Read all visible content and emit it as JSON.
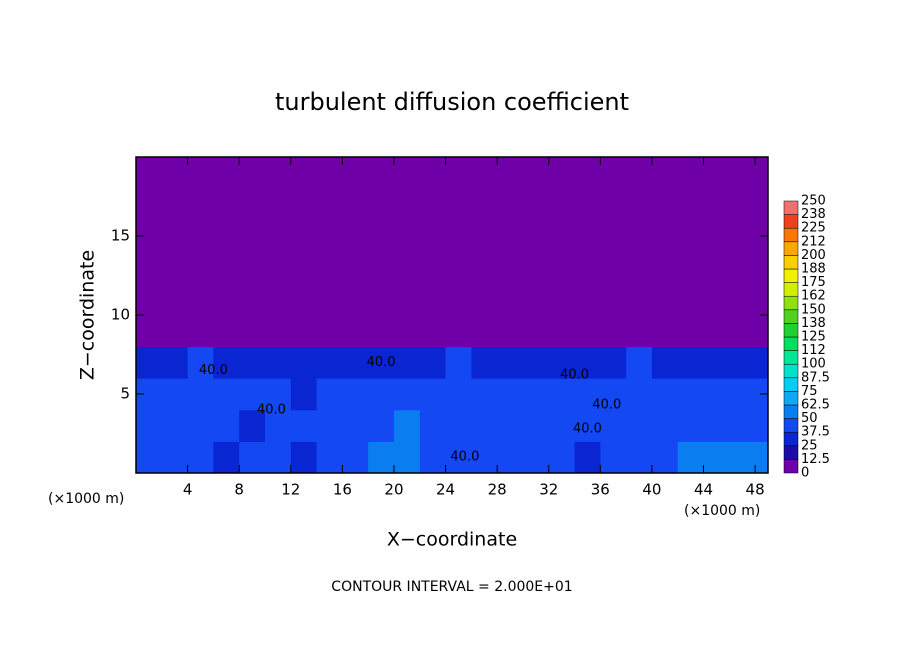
{
  "chart_data": {
    "type": "heatmap",
    "title": "turbulent diffusion coefficient",
    "x_label": "X−coordinate",
    "y_label": "Z−coordinate",
    "x_unit": "(×1000 m)",
    "y_unit": "(×1000 m)",
    "footer": "CONTOUR INTERVAL = 2.000E+01",
    "xlim": [
      0,
      49
    ],
    "ylim": [
      0,
      20
    ],
    "xticks": [
      4,
      8,
      12,
      16,
      20,
      24,
      28,
      32,
      36,
      40,
      44,
      48
    ],
    "yticks": [
      5,
      10,
      15
    ],
    "x": [
      1,
      3,
      5,
      7,
      9,
      11,
      13,
      15,
      17,
      19,
      21,
      23,
      25,
      27,
      29,
      31,
      33,
      35,
      37,
      39,
      41,
      43,
      45,
      47,
      49
    ],
    "y": [
      1,
      3,
      5,
      7,
      9,
      11,
      13,
      15,
      17,
      19
    ],
    "z": [
      [
        40,
        38,
        42,
        36,
        40,
        38,
        35,
        38,
        40,
        55,
        60,
        38,
        40,
        42,
        48,
        40,
        38,
        36,
        40,
        42,
        44,
        55,
        58,
        56,
        52
      ],
      [
        42,
        40,
        45,
        38,
        36,
        40,
        38,
        42,
        40,
        48,
        50,
        45,
        38,
        40,
        44,
        42,
        40,
        38,
        42,
        44,
        40,
        42,
        45,
        48,
        44
      ],
      [
        44,
        42,
        40,
        45,
        38,
        40,
        36,
        38,
        40,
        42,
        45,
        40,
        42,
        38,
        44,
        45,
        48,
        42,
        40,
        42,
        38,
        40,
        42,
        44,
        46
      ],
      [
        36,
        34,
        38,
        35,
        30,
        32,
        28,
        30,
        26,
        32,
        35,
        34,
        38,
        36,
        32,
        30,
        28,
        34,
        36,
        38,
        34,
        36,
        32,
        30,
        36
      ],
      [
        0,
        0,
        0,
        0,
        0,
        0,
        0,
        0,
        0,
        0,
        0,
        0,
        0,
        0,
        0,
        0,
        0,
        0,
        0,
        0,
        0,
        0,
        0,
        0,
        0
      ],
      [
        0,
        0,
        0,
        0,
        0,
        0,
        0,
        0,
        0,
        0,
        0,
        0,
        0,
        0,
        0,
        0,
        0,
        0,
        0,
        0,
        0,
        0,
        0,
        0,
        0
      ],
      [
        0,
        0,
        0,
        0,
        0,
        0,
        0,
        0,
        0,
        0,
        0,
        0,
        0,
        0,
        0,
        0,
        0,
        0,
        0,
        0,
        0,
        0,
        0,
        0,
        0
      ],
      [
        0,
        0,
        0,
        0,
        0,
        0,
        0,
        0,
        0,
        0,
        0,
        0,
        0,
        0,
        0,
        0,
        0,
        0,
        0,
        0,
        0,
        0,
        0,
        0,
        0
      ],
      [
        0,
        0,
        0,
        0,
        0,
        0,
        0,
        0,
        0,
        0,
        0,
        0,
        0,
        0,
        0,
        0,
        0,
        0,
        0,
        0,
        0,
        0,
        0,
        0,
        0
      ],
      [
        0,
        0,
        0,
        0,
        0,
        0,
        0,
        0,
        0,
        0,
        0,
        0,
        0,
        0,
        0,
        0,
        0,
        0,
        0,
        0,
        0,
        0,
        0,
        0,
        0
      ]
    ],
    "levels": [
      0,
      12.5,
      25,
      37.5,
      50,
      62.5,
      75,
      87.5,
      100,
      112,
      125,
      138,
      150,
      162,
      175,
      188,
      200,
      212,
      225,
      238,
      250
    ],
    "colors": [
      "#7000a8",
      "#1c0ca8",
      "#0a26d2",
      "#1448f2",
      "#0a7ef0",
      "#10a8f4",
      "#00cef2",
      "#00e2c8",
      "#00e896",
      "#00e060",
      "#20d030",
      "#50d020",
      "#90e010",
      "#d0f000",
      "#f0f000",
      "#f8d000",
      "#f8a800",
      "#f87800",
      "#f04020",
      "#f07070"
    ],
    "annotations": [
      {
        "text": "40.0",
        "x": 6,
        "y": 6.5
      },
      {
        "text": "40.0",
        "x": 10.5,
        "y": 4
      },
      {
        "text": "40.0",
        "x": 19,
        "y": 7
      },
      {
        "text": "40.0",
        "x": 25.5,
        "y": 1
      },
      {
        "text": "40.0",
        "x": 34,
        "y": 6.2
      },
      {
        "text": "40.0",
        "x": 36.5,
        "y": 4.3
      },
      {
        "text": "40.0",
        "x": 35,
        "y": 2.8
      }
    ]
  }
}
